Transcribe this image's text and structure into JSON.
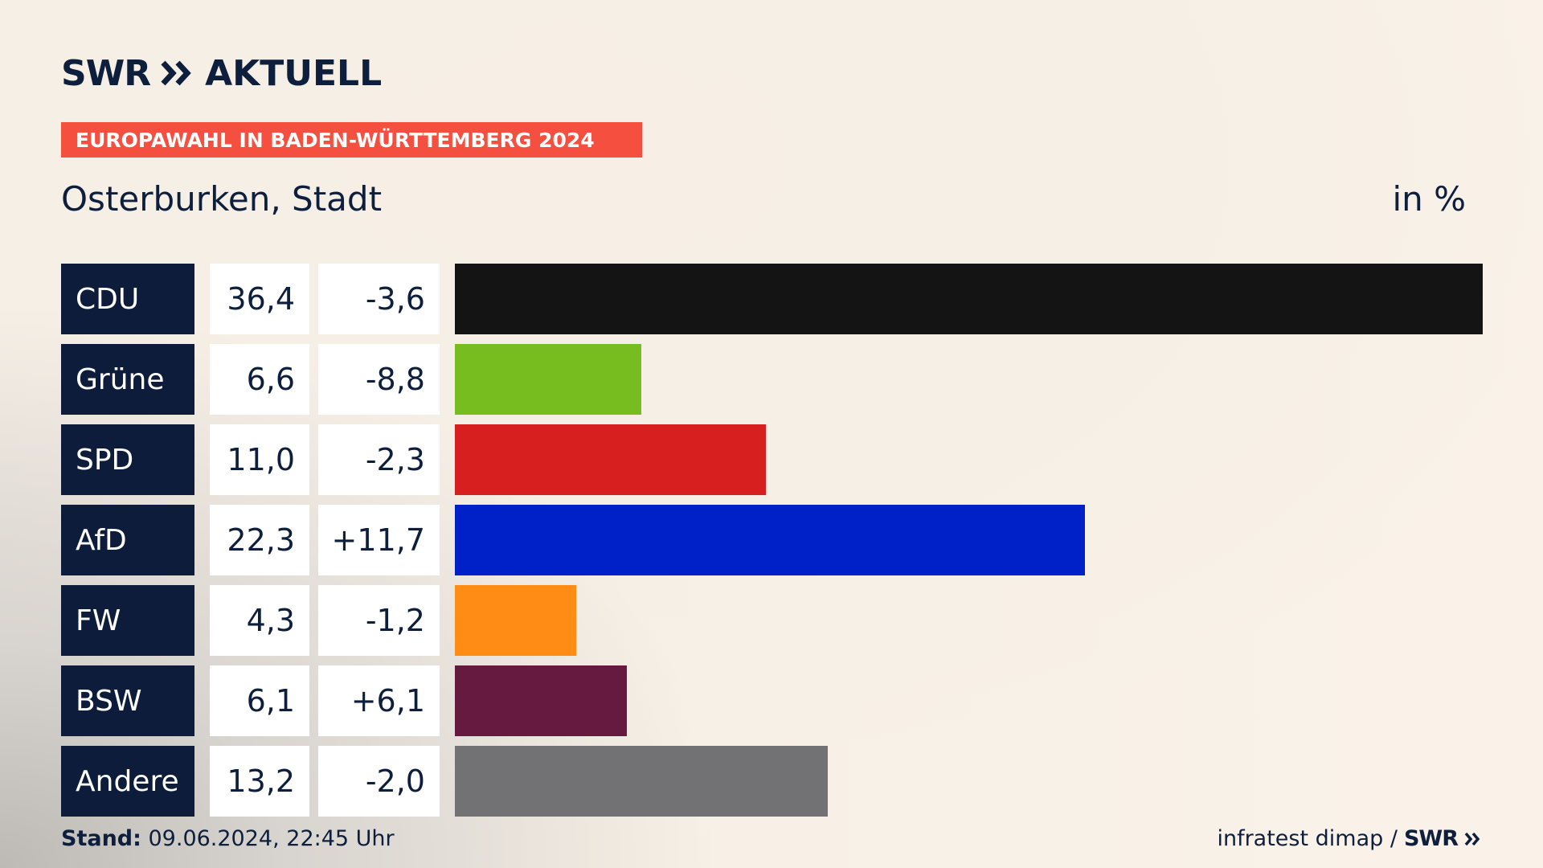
{
  "header": {
    "logo_swr": "SWR",
    "logo_aktuell": "AKTUELL",
    "banner": "EUROPAWAHL IN BADEN-WÜRTTEMBERG 2024",
    "subtitle": "Osterburken, Stadt",
    "unit": "in %"
  },
  "colors": {
    "navy": "#0c1c3a",
    "banner": "#f5503f"
  },
  "chart_data": {
    "type": "bar",
    "orientation": "horizontal",
    "categories": [
      "CDU",
      "Grüne",
      "SPD",
      "AfD",
      "FW",
      "BSW",
      "Andere"
    ],
    "values": [
      36.4,
      6.6,
      11.0,
      22.3,
      4.3,
      6.1,
      13.2
    ],
    "value_labels": [
      "36,4",
      "6,6",
      "11,0",
      "22,3",
      "4,3",
      "6,1",
      "13,2"
    ],
    "change_labels": [
      "-3,6",
      "-8,8",
      "-2,3",
      "+11,7",
      "-1,2",
      "+6,1",
      "-2,0"
    ],
    "changes": [
      -3.6,
      -8.8,
      -2.3,
      11.7,
      -1.2,
      6.1,
      -2.0
    ],
    "bar_colors": [
      "#141414",
      "#78bd1f",
      "#d71f1f",
      "#0021c7",
      "#ff8c14",
      "#661a3f",
      "#727274"
    ],
    "xlim": [
      0,
      36.4
    ],
    "grid": false,
    "legend": "none"
  },
  "footer": {
    "stand_label": "Stand:",
    "stand_value": " 09.06.2024, 22:45 Uhr",
    "source": "infratest dimap /",
    "source_logo": "SWR"
  }
}
